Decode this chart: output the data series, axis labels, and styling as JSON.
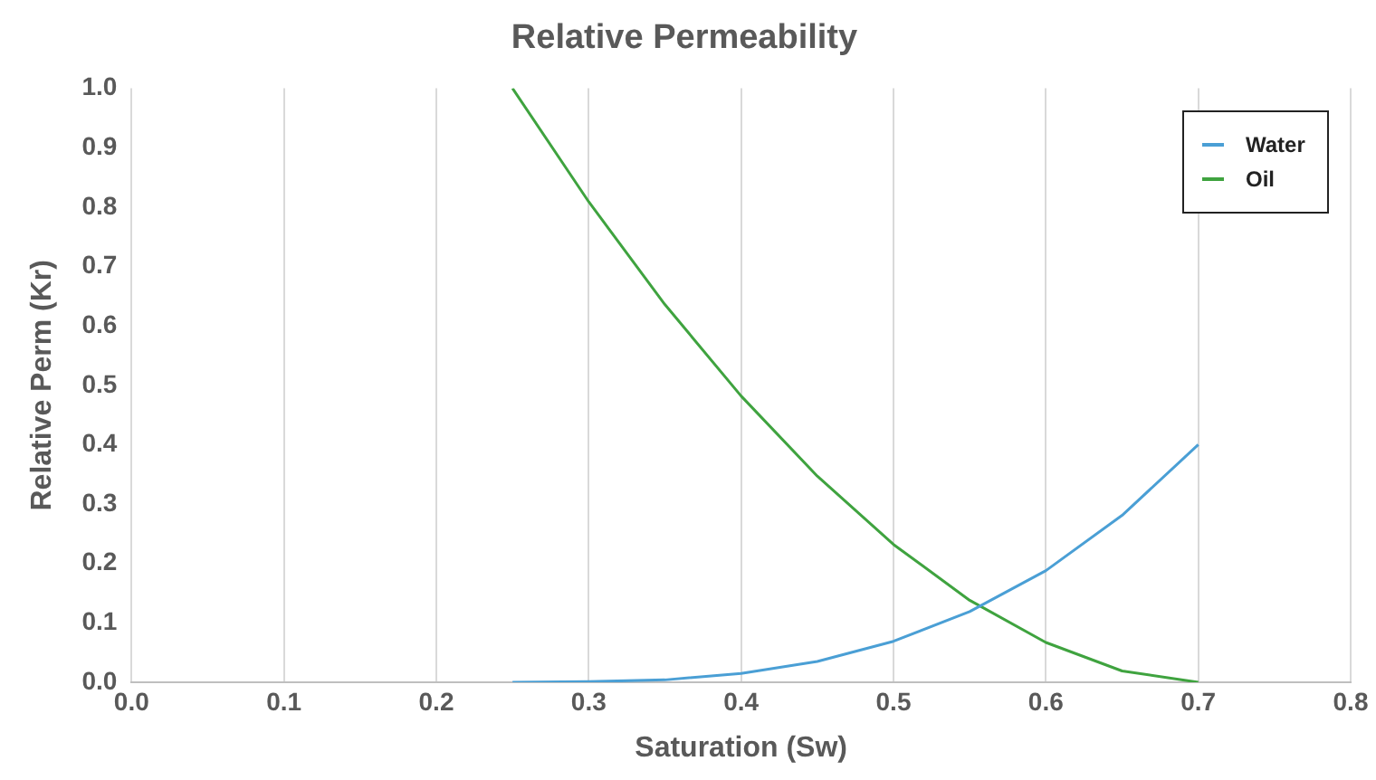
{
  "chart_data": {
    "type": "line",
    "title": "Relative Permeability",
    "xlabel": "Saturation (Sw)",
    "ylabel": "Relative Perm (Kr)",
    "x": [
      0.25,
      0.3,
      0.35,
      0.4,
      0.45,
      0.5,
      0.55,
      0.6,
      0.65,
      0.7
    ],
    "series": [
      {
        "name": "Water",
        "color": "#4a9fd5",
        "values": [
          0,
          0.001,
          0.004,
          0.015,
          0.035,
          0.069,
          0.119,
          0.188,
          0.281,
          0.4
        ]
      },
      {
        "name": "Oil",
        "color": "#3fa33f",
        "values": [
          1,
          0.809,
          0.636,
          0.482,
          0.347,
          0.232,
          0.138,
          0.067,
          0.019,
          0
        ]
      }
    ],
    "xlim": [
      0,
      0.8
    ],
    "xticks": [
      {
        "value": 0,
        "label": "0.0"
      },
      0.1,
      0.2,
      0.3,
      0.4,
      0.5,
      0.6,
      0.7,
      0.8
    ],
    "ylim": [
      0,
      1
    ],
    "yticks": [
      {
        "value": 0,
        "label": "0.0"
      },
      0.1,
      0.2,
      0.3,
      0.4,
      0.5,
      0.6,
      0.7,
      0.8,
      0.9,
      {
        "value": 1,
        "label": "1.0"
      }
    ],
    "grid": "x",
    "legend": "top right",
    "marker": "none",
    "line_style": "solid"
  }
}
